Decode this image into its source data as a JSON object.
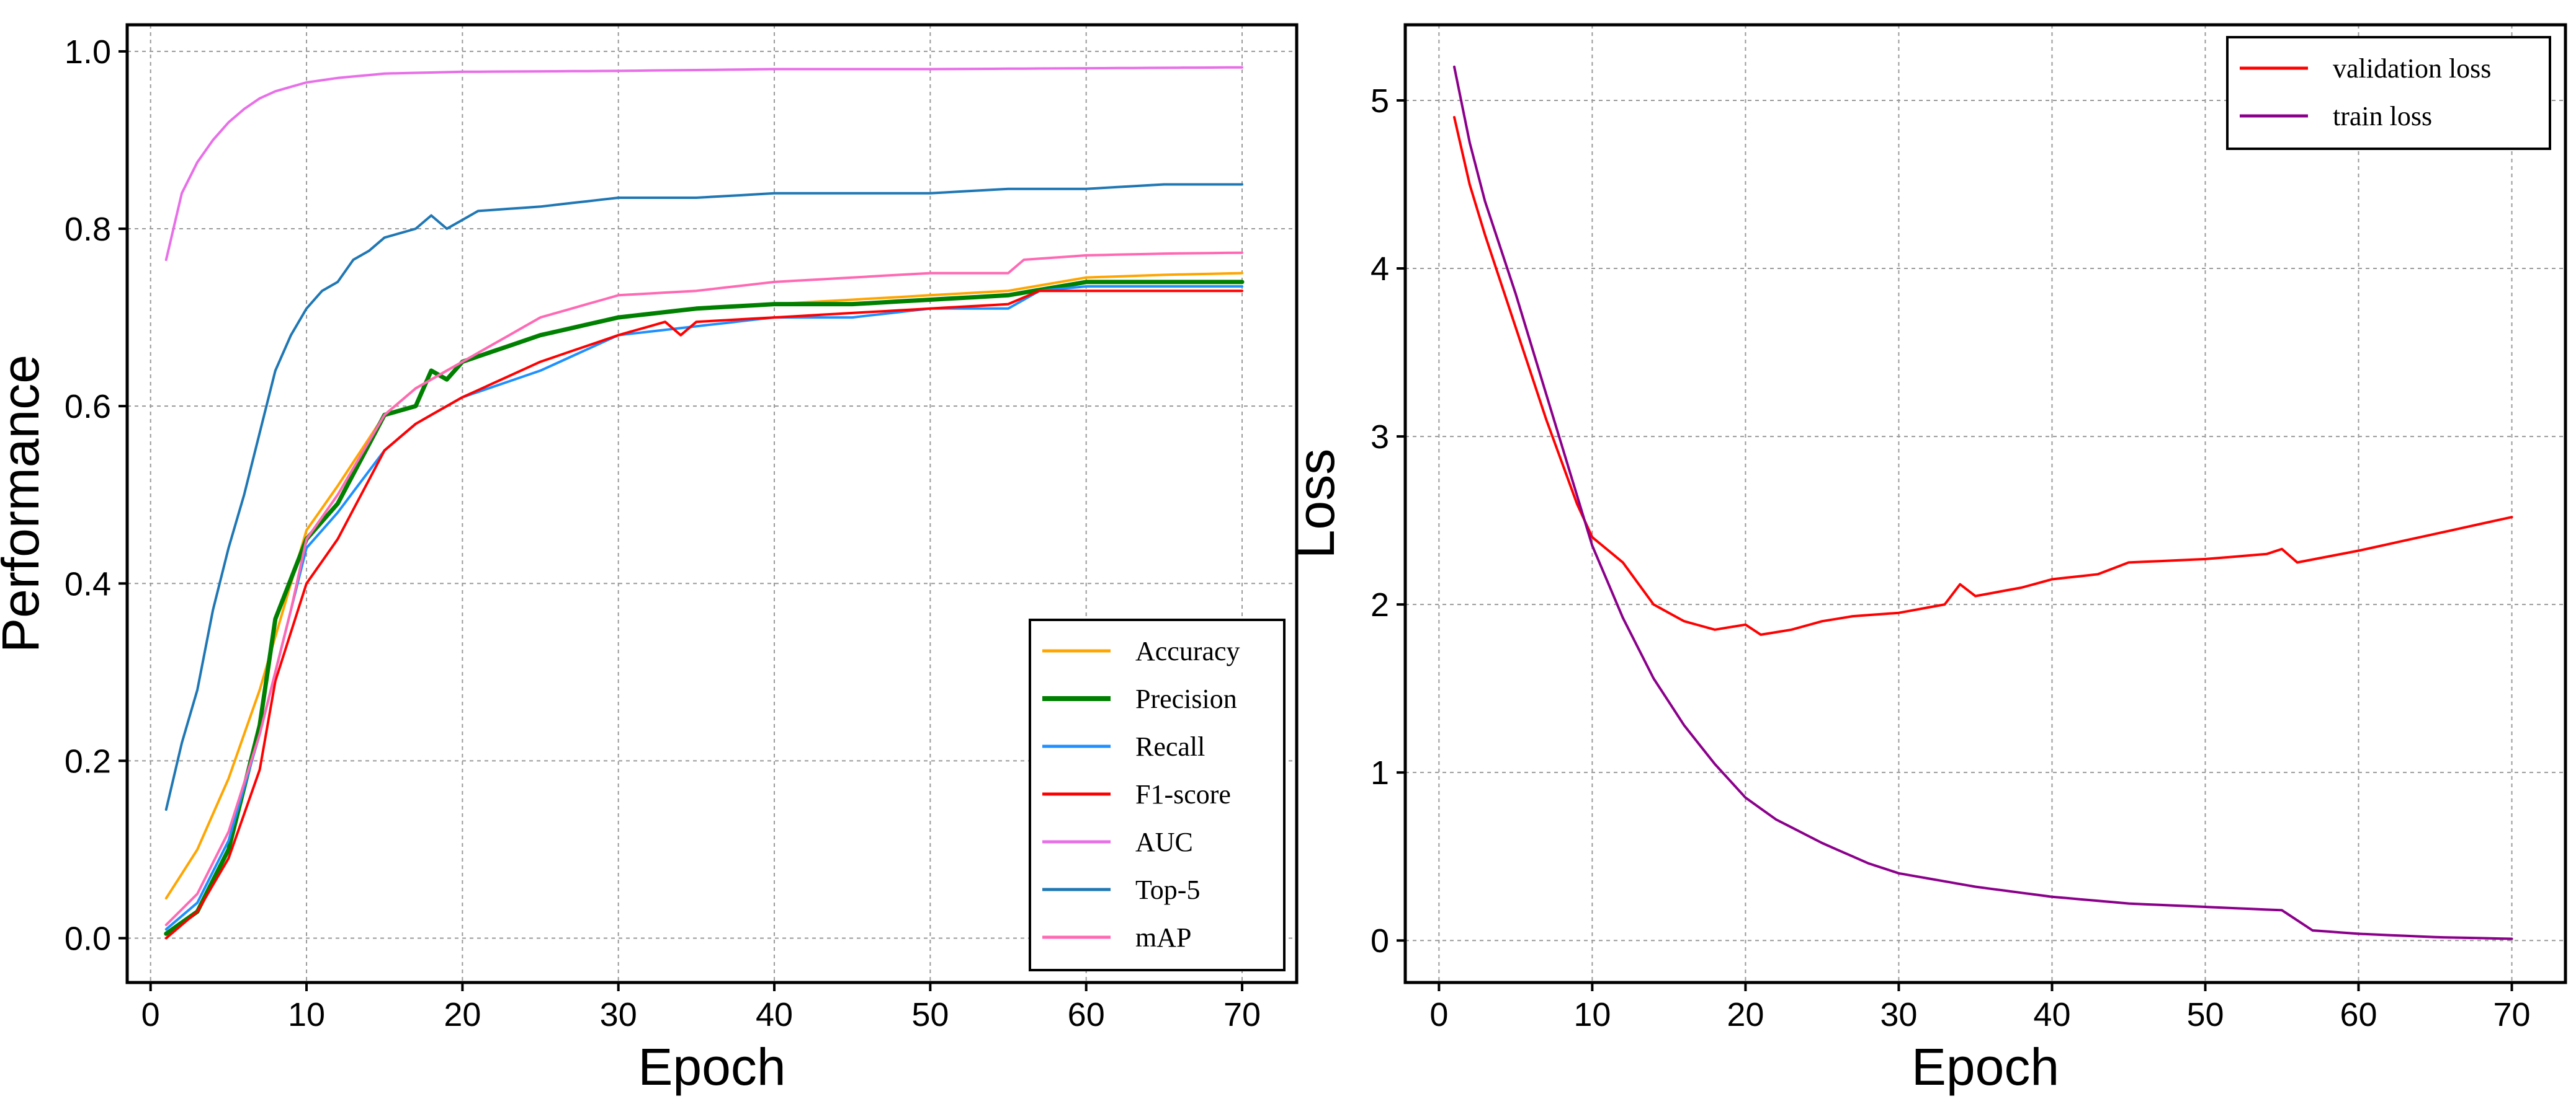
{
  "chart_data": [
    {
      "type": "line",
      "title": "",
      "xlabel": "Epoch",
      "ylabel": "Performance",
      "xlim": [
        -1.5,
        73.5
      ],
      "ylim": [
        -0.05,
        1.03
      ],
      "xticks": [
        0,
        10,
        20,
        30,
        40,
        50,
        60,
        70
      ],
      "xtick_labels": [
        "0",
        "10",
        "20",
        "30",
        "40",
        "50",
        "60",
        "70"
      ],
      "yticks": [
        0.0,
        0.2,
        0.4,
        0.6,
        0.8,
        1.0
      ],
      "ytick_labels": [
        "0.0",
        "0.2",
        "0.4",
        "0.6",
        "0.8",
        "1.0"
      ],
      "grid": true,
      "legend_position": "bottom-right",
      "series": [
        {
          "name": "Accuracy",
          "color": "#FFA500",
          "width": 4,
          "anchors": [
            [
              1,
              0.045
            ],
            [
              3,
              0.1
            ],
            [
              5,
              0.18
            ],
            [
              7,
              0.28
            ],
            [
              9,
              0.4
            ],
            [
              10,
              0.46
            ],
            [
              12,
              0.51
            ],
            [
              15,
              0.59
            ],
            [
              17,
              0.62
            ],
            [
              20,
              0.65
            ],
            [
              25,
              0.68
            ],
            [
              30,
              0.7
            ],
            [
              35,
              0.71
            ],
            [
              40,
              0.715
            ],
            [
              45,
              0.72
            ],
            [
              50,
              0.725
            ],
            [
              55,
              0.73
            ],
            [
              60,
              0.745
            ],
            [
              65,
              0.748
            ],
            [
              70,
              0.75
            ]
          ]
        },
        {
          "name": "Precision",
          "color": "#008000",
          "width": 7,
          "anchors": [
            [
              1,
              0.005
            ],
            [
              3,
              0.03
            ],
            [
              5,
              0.1
            ],
            [
              7,
              0.24
            ],
            [
              8,
              0.36
            ],
            [
              10,
              0.45
            ],
            [
              12,
              0.49
            ],
            [
              15,
              0.59
            ],
            [
              17,
              0.6
            ],
            [
              18,
              0.64
            ],
            [
              19,
              0.63
            ],
            [
              20,
              0.65
            ],
            [
              25,
              0.68
            ],
            [
              30,
              0.7
            ],
            [
              35,
              0.71
            ],
            [
              40,
              0.715
            ],
            [
              45,
              0.715
            ],
            [
              50,
              0.72
            ],
            [
              55,
              0.725
            ],
            [
              60,
              0.74
            ],
            [
              65,
              0.74
            ],
            [
              70,
              0.74
            ]
          ]
        },
        {
          "name": "Recall",
          "color": "#1E90FF",
          "width": 4,
          "anchors": [
            [
              1,
              0.01
            ],
            [
              3,
              0.04
            ],
            [
              5,
              0.11
            ],
            [
              7,
              0.23
            ],
            [
              9,
              0.37
            ],
            [
              10,
              0.44
            ],
            [
              12,
              0.48
            ],
            [
              15,
              0.55
            ],
            [
              17,
              0.58
            ],
            [
              20,
              0.61
            ],
            [
              25,
              0.64
            ],
            [
              30,
              0.68
            ],
            [
              35,
              0.69
            ],
            [
              40,
              0.7
            ],
            [
              45,
              0.7
            ],
            [
              50,
              0.71
            ],
            [
              55,
              0.71
            ],
            [
              57,
              0.73
            ],
            [
              60,
              0.735
            ],
            [
              65,
              0.735
            ],
            [
              70,
              0.735
            ]
          ]
        },
        {
          "name": "F1-score",
          "color": "#FF0000",
          "width": 4,
          "anchors": [
            [
              1,
              0.0
            ],
            [
              3,
              0.03
            ],
            [
              5,
              0.09
            ],
            [
              7,
              0.19
            ],
            [
              8,
              0.29
            ],
            [
              10,
              0.4
            ],
            [
              12,
              0.45
            ],
            [
              15,
              0.55
            ],
            [
              17,
              0.58
            ],
            [
              20,
              0.61
            ],
            [
              25,
              0.65
            ],
            [
              30,
              0.68
            ],
            [
              33,
              0.695
            ],
            [
              34,
              0.68
            ],
            [
              35,
              0.695
            ],
            [
              40,
              0.7
            ],
            [
              45,
              0.705
            ],
            [
              50,
              0.71
            ],
            [
              55,
              0.715
            ],
            [
              57,
              0.73
            ],
            [
              60,
              0.73
            ],
            [
              65,
              0.73
            ],
            [
              70,
              0.73
            ]
          ]
        },
        {
          "name": "AUC",
          "color": "#E86FE8",
          "width": 4,
          "anchors": [
            [
              1,
              0.765
            ],
            [
              2,
              0.84
            ],
            [
              3,
              0.875
            ],
            [
              4,
              0.9
            ],
            [
              5,
              0.92
            ],
            [
              6,
              0.935
            ],
            [
              7,
              0.947
            ],
            [
              8,
              0.955
            ],
            [
              9,
              0.96
            ],
            [
              10,
              0.965
            ],
            [
              12,
              0.97
            ],
            [
              15,
              0.975
            ],
            [
              20,
              0.977
            ],
            [
              30,
              0.978
            ],
            [
              40,
              0.98
            ],
            [
              50,
              0.98
            ],
            [
              60,
              0.981
            ],
            [
              70,
              0.982
            ]
          ]
        },
        {
          "name": "Top-5",
          "color": "#1F77B4",
          "width": 4,
          "anchors": [
            [
              1,
              0.145
            ],
            [
              2,
              0.22
            ],
            [
              3,
              0.28
            ],
            [
              4,
              0.37
            ],
            [
              5,
              0.44
            ],
            [
              6,
              0.5
            ],
            [
              7,
              0.57
            ],
            [
              8,
              0.64
            ],
            [
              9,
              0.68
            ],
            [
              10,
              0.71
            ],
            [
              11,
              0.73
            ],
            [
              12,
              0.74
            ],
            [
              13,
              0.765
            ],
            [
              14,
              0.775
            ],
            [
              15,
              0.79
            ],
            [
              17,
              0.8
            ],
            [
              18,
              0.815
            ],
            [
              19,
              0.8
            ],
            [
              21,
              0.82
            ],
            [
              25,
              0.825
            ],
            [
              30,
              0.835
            ],
            [
              35,
              0.835
            ],
            [
              40,
              0.84
            ],
            [
              45,
              0.84
            ],
            [
              50,
              0.84
            ],
            [
              55,
              0.845
            ],
            [
              60,
              0.845
            ],
            [
              65,
              0.85
            ],
            [
              70,
              0.85
            ]
          ]
        },
        {
          "name": "mAP",
          "color": "#FF69B4",
          "width": 4,
          "anchors": [
            [
              1,
              0.015
            ],
            [
              3,
              0.05
            ],
            [
              5,
              0.12
            ],
            [
              7,
              0.23
            ],
            [
              9,
              0.37
            ],
            [
              10,
              0.45
            ],
            [
              12,
              0.5
            ],
            [
              15,
              0.59
            ],
            [
              17,
              0.62
            ],
            [
              20,
              0.65
            ],
            [
              25,
              0.7
            ],
            [
              30,
              0.725
            ],
            [
              35,
              0.73
            ],
            [
              40,
              0.74
            ],
            [
              45,
              0.745
            ],
            [
              50,
              0.75
            ],
            [
              55,
              0.75
            ],
            [
              56,
              0.765
            ],
            [
              60,
              0.77
            ],
            [
              65,
              0.772
            ],
            [
              70,
              0.773
            ]
          ]
        }
      ]
    },
    {
      "type": "line",
      "title": "",
      "xlabel": "Epoch",
      "ylabel": "Loss",
      "xlim": [
        -2.2,
        73.5
      ],
      "ylim": [
        -0.25,
        5.45
      ],
      "xticks": [
        0,
        10,
        20,
        30,
        40,
        50,
        60,
        70
      ],
      "xtick_labels": [
        "0",
        "10",
        "20",
        "30",
        "40",
        "50",
        "60",
        "70"
      ],
      "yticks": [
        0,
        1,
        2,
        3,
        4,
        5
      ],
      "ytick_labels": [
        "0",
        "1",
        "2",
        "3",
        "4",
        "5"
      ],
      "grid": true,
      "legend_position": "top-right",
      "series": [
        {
          "name": "validation loss",
          "color": "#FF0000",
          "width": 4,
          "anchors": [
            [
              1,
              4.9
            ],
            [
              2,
              4.5
            ],
            [
              3,
              4.2
            ],
            [
              5,
              3.65
            ],
            [
              7,
              3.1
            ],
            [
              9,
              2.6
            ],
            [
              10,
              2.4
            ],
            [
              12,
              2.25
            ],
            [
              14,
              2.0
            ],
            [
              16,
              1.9
            ],
            [
              18,
              1.85
            ],
            [
              20,
              1.88
            ],
            [
              21,
              1.82
            ],
            [
              23,
              1.85
            ],
            [
              25,
              1.9
            ],
            [
              27,
              1.93
            ],
            [
              30,
              1.95
            ],
            [
              33,
              2.0
            ],
            [
              34,
              2.12
            ],
            [
              35,
              2.05
            ],
            [
              38,
              2.1
            ],
            [
              40,
              2.15
            ],
            [
              43,
              2.18
            ],
            [
              45,
              2.25
            ],
            [
              50,
              2.27
            ],
            [
              54,
              2.3
            ],
            [
              55,
              2.33
            ],
            [
              56,
              2.25
            ],
            [
              60,
              2.32
            ],
            [
              65,
              2.42
            ],
            [
              70,
              2.52
            ]
          ]
        },
        {
          "name": "train loss",
          "color": "#8B008B",
          "width": 4,
          "anchors": [
            [
              1,
              5.2
            ],
            [
              2,
              4.75
            ],
            [
              3,
              4.4
            ],
            [
              5,
              3.85
            ],
            [
              7,
              3.25
            ],
            [
              9,
              2.65
            ],
            [
              10,
              2.35
            ],
            [
              12,
              1.92
            ],
            [
              14,
              1.56
            ],
            [
              16,
              1.28
            ],
            [
              18,
              1.05
            ],
            [
              20,
              0.85
            ],
            [
              22,
              0.72
            ],
            [
              25,
              0.58
            ],
            [
              28,
              0.46
            ],
            [
              30,
              0.4
            ],
            [
              35,
              0.32
            ],
            [
              40,
              0.26
            ],
            [
              45,
              0.22
            ],
            [
              50,
              0.2
            ],
            [
              55,
              0.18
            ],
            [
              56,
              0.12
            ],
            [
              57,
              0.06
            ],
            [
              60,
              0.04
            ],
            [
              65,
              0.02
            ],
            [
              70,
              0.01
            ]
          ]
        }
      ]
    }
  ]
}
